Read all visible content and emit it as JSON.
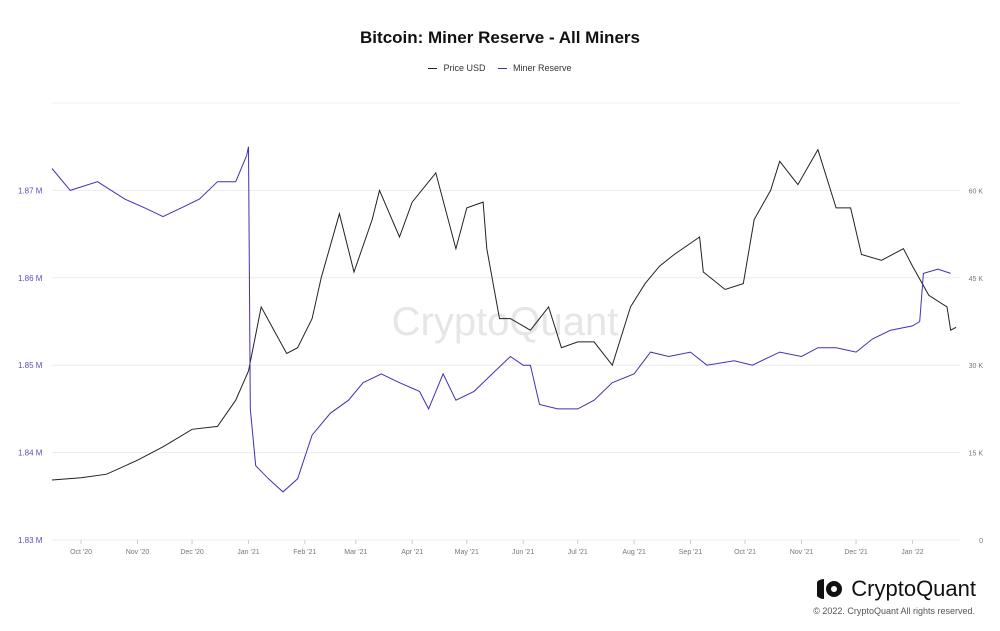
{
  "chart_data": {
    "type": "line",
    "title": "Bitcoin: Miner Reserve - All Miners",
    "legend_position": "top",
    "grid": true,
    "x_ticks": [
      "Oct '20",
      "Nov '20",
      "Dec '20",
      "Jan '21",
      "Feb '21",
      "Mar '21",
      "Apr '21",
      "May '21",
      "Jun '21",
      "Jul '21",
      "Aug '21",
      "Sep '21",
      "Oct '21",
      "Nov '21",
      "Dec '21",
      "Jan '22"
    ],
    "left_axis": {
      "ticks": [
        "1.83 M",
        "1.84 M",
        "1.85 M",
        "1.86 M",
        "1.87 M"
      ],
      "range": [
        1.83,
        1.88
      ],
      "color": "#5b50b8"
    },
    "right_axis": {
      "ticks": [
        "0",
        "15 K",
        "30 K",
        "45 K",
        "60 K"
      ],
      "range": [
        0,
        75000
      ],
      "color": "#777777"
    },
    "series": [
      {
        "name": "Price USD",
        "axis": "right",
        "color": "#222222",
        "points": [
          [
            "2020-09-15",
            10300
          ],
          [
            "2020-10-01",
            10700
          ],
          [
            "2020-10-15",
            11300
          ],
          [
            "2020-11-01",
            13700
          ],
          [
            "2020-11-15",
            16000
          ],
          [
            "2020-12-01",
            19000
          ],
          [
            "2020-12-15",
            19500
          ],
          [
            "2020-12-25",
            24000
          ],
          [
            "2021-01-01",
            29000
          ],
          [
            "2021-01-08",
            40000
          ],
          [
            "2021-01-15",
            36000
          ],
          [
            "2021-01-22",
            32000
          ],
          [
            "2021-01-28",
            33000
          ],
          [
            "2021-02-05",
            38000
          ],
          [
            "2021-02-10",
            45000
          ],
          [
            "2021-02-20",
            56000
          ],
          [
            "2021-02-28",
            46000
          ],
          [
            "2021-03-10",
            55000
          ],
          [
            "2021-03-14",
            60000
          ],
          [
            "2021-03-25",
            52000
          ],
          [
            "2021-04-01",
            58000
          ],
          [
            "2021-04-14",
            63000
          ],
          [
            "2021-04-25",
            50000
          ],
          [
            "2021-05-01",
            57000
          ],
          [
            "2021-05-10",
            58000
          ],
          [
            "2021-05-12",
            50000
          ],
          [
            "2021-05-19",
            38000
          ],
          [
            "2021-05-25",
            38000
          ],
          [
            "2021-06-05",
            36000
          ],
          [
            "2021-06-15",
            40000
          ],
          [
            "2021-06-22",
            33000
          ],
          [
            "2021-07-01",
            34000
          ],
          [
            "2021-07-10",
            34000
          ],
          [
            "2021-07-20",
            30000
          ],
          [
            "2021-07-30",
            40000
          ],
          [
            "2021-08-07",
            44000
          ],
          [
            "2021-08-15",
            47000
          ],
          [
            "2021-08-23",
            49000
          ],
          [
            "2021-09-06",
            52000
          ],
          [
            "2021-09-08",
            46000
          ],
          [
            "2021-09-20",
            43000
          ],
          [
            "2021-09-30",
            44000
          ],
          [
            "2021-10-06",
            55000
          ],
          [
            "2021-10-15",
            60000
          ],
          [
            "2021-10-20",
            65000
          ],
          [
            "2021-10-30",
            61000
          ],
          [
            "2021-11-10",
            67000
          ],
          [
            "2021-11-20",
            57000
          ],
          [
            "2021-11-28",
            57000
          ],
          [
            "2021-12-04",
            49000
          ],
          [
            "2021-12-15",
            48000
          ],
          [
            "2021-12-27",
            50000
          ],
          [
            "2022-01-01",
            47000
          ],
          [
            "2022-01-10",
            42000
          ],
          [
            "2022-01-20",
            40000
          ],
          [
            "2022-01-22",
            36000
          ],
          [
            "2022-01-25",
            36500
          ]
        ]
      },
      {
        "name": "Miner Reserve",
        "axis": "left",
        "color": "#3b33b5",
        "points": [
          [
            "2020-09-15",
            1.8725
          ],
          [
            "2020-09-25",
            1.87
          ],
          [
            "2020-10-10",
            1.871
          ],
          [
            "2020-10-25",
            1.869
          ],
          [
            "2020-11-05",
            1.868
          ],
          [
            "2020-11-15",
            1.867
          ],
          [
            "2020-11-25",
            1.868
          ],
          [
            "2020-12-05",
            1.869
          ],
          [
            "2020-12-15",
            1.871
          ],
          [
            "2020-12-25",
            1.871
          ],
          [
            "2020-12-31",
            1.874
          ],
          [
            "2021-01-01",
            1.875
          ],
          [
            "2021-01-02",
            1.845
          ],
          [
            "2021-01-05",
            1.8385
          ],
          [
            "2021-01-12",
            1.837
          ],
          [
            "2021-01-20",
            1.8355
          ],
          [
            "2021-01-28",
            1.837
          ],
          [
            "2021-02-05",
            1.842
          ],
          [
            "2021-02-15",
            1.8445
          ],
          [
            "2021-02-25",
            1.846
          ],
          [
            "2021-03-05",
            1.848
          ],
          [
            "2021-03-15",
            1.849
          ],
          [
            "2021-03-25",
            1.848
          ],
          [
            "2021-04-05",
            1.847
          ],
          [
            "2021-04-10",
            1.845
          ],
          [
            "2021-04-18",
            1.849
          ],
          [
            "2021-04-25",
            1.846
          ],
          [
            "2021-05-05",
            1.847
          ],
          [
            "2021-05-15",
            1.849
          ],
          [
            "2021-05-25",
            1.851
          ],
          [
            "2021-06-01",
            1.85
          ],
          [
            "2021-06-05",
            1.85
          ],
          [
            "2021-06-10",
            1.8455
          ],
          [
            "2021-06-20",
            1.845
          ],
          [
            "2021-07-01",
            1.845
          ],
          [
            "2021-07-10",
            1.846
          ],
          [
            "2021-07-20",
            1.848
          ],
          [
            "2021-08-01",
            1.849
          ],
          [
            "2021-08-10",
            1.8515
          ],
          [
            "2021-08-20",
            1.851
          ],
          [
            "2021-09-01",
            1.8515
          ],
          [
            "2021-09-10",
            1.85
          ],
          [
            "2021-09-25",
            1.8505
          ],
          [
            "2021-10-05",
            1.85
          ],
          [
            "2021-10-20",
            1.8515
          ],
          [
            "2021-11-01",
            1.851
          ],
          [
            "2021-11-10",
            1.852
          ],
          [
            "2021-11-20",
            1.852
          ],
          [
            "2021-12-01",
            1.8515
          ],
          [
            "2021-12-10",
            1.853
          ],
          [
            "2021-12-20",
            1.854
          ],
          [
            "2022-01-01",
            1.8545
          ],
          [
            "2022-01-05",
            1.855
          ],
          [
            "2022-01-07",
            1.8605
          ],
          [
            "2022-01-15",
            1.861
          ],
          [
            "2022-01-22",
            1.8605
          ]
        ]
      }
    ]
  },
  "watermark": "CryptoQuant",
  "footer": {
    "brand": "CryptoQuant",
    "copyright": "© 2022. CryptoQuant All rights reserved."
  }
}
